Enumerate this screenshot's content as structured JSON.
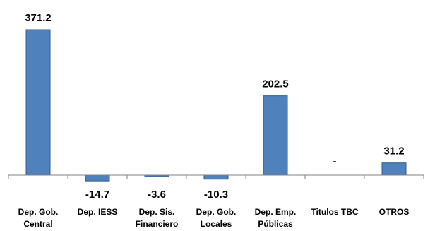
{
  "chart_data": {
    "type": "bar",
    "title": "",
    "xlabel": "",
    "ylabel": "",
    "ylim": [
      -20,
      380
    ],
    "grid": false,
    "legend": "none",
    "bar_color": "#4f81bd",
    "bar_edge_color": "#2f5d8c",
    "categories": [
      [
        "Dep. Gob.",
        "Central"
      ],
      [
        "Dep. IESS"
      ],
      [
        "Dep. Sis.",
        "Financiero"
      ],
      [
        "Dep. Gob.",
        "Locales"
      ],
      [
        "Dep. Emp.",
        "Públicas"
      ],
      [
        "Titulos TBC"
      ],
      [
        "OTROS"
      ]
    ],
    "values": [
      371.2,
      -14.7,
      -3.6,
      -10.3,
      202.5,
      0,
      31.2
    ],
    "labels": [
      "371.2",
      "-14.7",
      "-3.6",
      "-10.3",
      "202.5",
      "-",
      "31.2"
    ]
  }
}
